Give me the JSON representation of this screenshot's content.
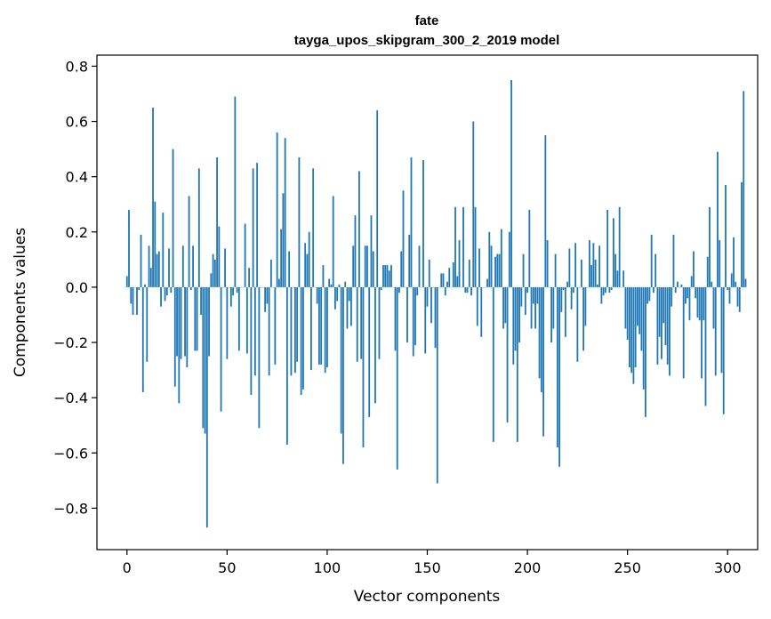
{
  "chart_data": {
    "type": "bar",
    "title": "fate",
    "subtitle": "tayga_upos_skipgram_300_2_2019 model",
    "xlabel": "Vector components",
    "ylabel": "Components values",
    "xlim": [
      -15.0,
      315.0
    ],
    "ylim": [
      -0.95,
      0.84
    ],
    "xticks": [
      0,
      50,
      100,
      150,
      200,
      250,
      300
    ],
    "xtick_labels": [
      "0",
      "50",
      "100",
      "150",
      "200",
      "250",
      "300"
    ],
    "yticks": [
      -0.8,
      -0.6,
      -0.4,
      -0.2,
      0.0,
      0.2,
      0.4,
      0.6,
      0.8
    ],
    "ytick_labels": [
      "−0.8",
      "−0.6",
      "−0.4",
      "−0.2",
      "0.0",
      "0.2",
      "0.4",
      "0.6",
      "0.8"
    ],
    "bar_color": "#1f77b4",
    "grid": false,
    "legend": "none",
    "values": [
      0.04,
      0.28,
      -0.06,
      -0.1,
      0.0,
      -0.1,
      -0.01,
      0.19,
      -0.38,
      0.01,
      -0.27,
      0.15,
      0.07,
      0.65,
      0.31,
      0.12,
      0.13,
      -0.07,
      0.27,
      -0.05,
      -0.03,
      0.14,
      -0.02,
      0.5,
      -0.36,
      -0.25,
      -0.42,
      -0.26,
      0.15,
      -0.25,
      -0.29,
      0.33,
      -0.01,
      0.15,
      -0.23,
      -0.23,
      0.43,
      -0.1,
      -0.51,
      -0.53,
      -0.87,
      -0.25,
      0.05,
      0.12,
      0.1,
      0.47,
      0.22,
      -0.45,
      0.0,
      0.14,
      -0.26,
      0.0,
      -0.07,
      -0.03,
      0.69,
      -0.02,
      -0.23,
      0.0,
      0.0,
      0.23,
      -0.24,
      0.07,
      -0.39,
      0.43,
      -0.32,
      0.45,
      -0.51,
      0.0,
      0.0,
      -0.09,
      -0.06,
      -0.32,
      0.1,
      0.0,
      -0.28,
      0.56,
      0.03,
      0.21,
      0.34,
      0.54,
      -0.57,
      0.13,
      -0.32,
      0.0,
      -0.31,
      -0.27,
      0.47,
      -0.39,
      -0.37,
      0.16,
      0.12,
      0.2,
      -0.3,
      0.43,
      0.0,
      -0.06,
      -0.28,
      -0.28,
      0.08,
      -0.31,
      -0.29,
      0.03,
      0.01,
      0.33,
      -0.08,
      -0.05,
      0.01,
      -0.53,
      -0.64,
      0.02,
      -0.15,
      -0.05,
      -0.14,
      0.15,
      0.26,
      -0.27,
      0.42,
      -0.26,
      -0.58,
      0.15,
      0.15,
      -0.47,
      0.26,
      0.13,
      -0.42,
      0.64,
      -0.26,
      -0.01,
      0.08,
      0.08,
      0.08,
      0.06,
      0.08,
      0.0,
      -0.23,
      -0.66,
      -0.02,
      0.13,
      0.35,
      0.0,
      -0.2,
      0.19,
      0.47,
      -0.25,
      -0.21,
      -0.03,
      0.15,
      0.0,
      0.46,
      -0.24,
      -0.07,
      0.1,
      -0.13,
      0.0,
      -0.22,
      -0.71,
      0.0,
      0.05,
      0.05,
      -0.03,
      0.02,
      0.07,
      0.0,
      0.09,
      0.29,
      0.04,
      0.17,
      0.0,
      0.29,
      -0.02,
      -0.02,
      0.1,
      -0.03,
      0.6,
      0.29,
      -0.14,
      0.14,
      -0.18,
      0.0,
      0.0,
      0.03,
      0.2,
      0.15,
      -0.56,
      0.11,
      0.12,
      0.12,
      0.21,
      -0.15,
      -0.13,
      -0.49,
      0.2,
      0.75,
      -0.28,
      -0.23,
      -0.56,
      -0.2,
      -0.07,
      0.12,
      -0.1,
      -0.02,
      0.28,
      -0.15,
      -0.06,
      -0.15,
      -0.06,
      -0.33,
      -0.38,
      -0.54,
      0.55,
      0.17,
      0.0,
      -0.2,
      -0.15,
      0.12,
      -0.58,
      -0.65,
      -0.09,
      -0.01,
      -0.18,
      0.02,
      0.14,
      -0.08,
      -0.02,
      0.16,
      -0.27,
      0.0,
      0.1,
      -0.23,
      -0.14,
      0.0,
      0.17,
      0.08,
      0.16,
      0.1,
      0.01,
      0.15,
      -0.06,
      -0.03,
      -0.02,
      0.28,
      -0.02,
      -0.01,
      0.25,
      0.12,
      0.06,
      0.29,
      0.0,
      0.06,
      -0.15,
      -0.19,
      -0.29,
      -0.31,
      -0.35,
      -0.29,
      -0.14,
      -0.17,
      -0.23,
      -0.37,
      -0.47,
      -0.06,
      -0.05,
      0.19,
      -0.02,
      0.12,
      -0.28,
      -0.18,
      -0.26,
      -0.13,
      -0.21,
      -0.28,
      -0.32,
      -0.07,
      0.19,
      -0.02,
      0.02,
      0.0,
      0.01,
      -0.33,
      -0.06,
      -0.04,
      -0.12,
      0.04,
      0.13,
      -0.04,
      -0.11,
      -0.12,
      -0.33,
      -0.12,
      -0.43,
      0.11,
      0.29,
      0.02,
      -0.15,
      -0.32,
      0.49,
      0.17,
      -0.31,
      -0.46,
      0.37,
      -0.01,
      -0.06,
      0.05,
      0.18,
      0.02,
      -0.07,
      -0.09,
      0.38,
      0.71,
      0.03
    ]
  }
}
